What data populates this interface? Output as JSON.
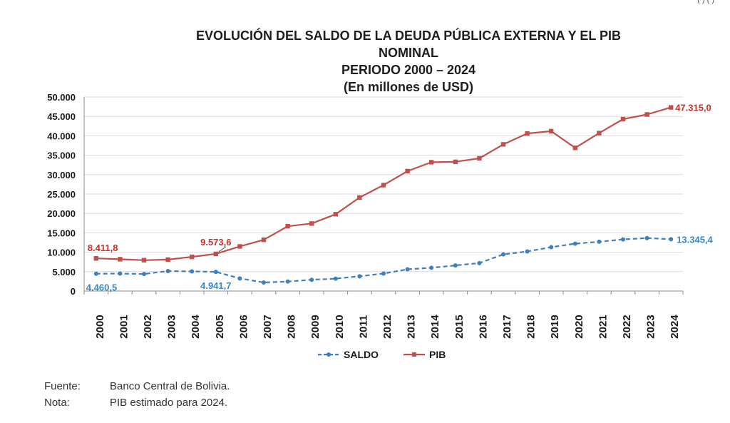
{
  "corner_text": "( ) ( )",
  "colors": {
    "saldo": "#3d7fbf",
    "pib": "#c0504d",
    "saldo_label": "#3a86c8",
    "pib_label": "#c8302c",
    "grid": "#d8d8d8"
  },
  "chart_data": {
    "type": "line",
    "title": "EVOLUCIÓN DEL SALDO DE LA DEUDA PÚBLICA EXTERNA Y EL PIB NOMINAL",
    "subtitle": "PERIODO 2000 – 2024",
    "unit_label": "(En millones de USD)",
    "categories": [
      "2000",
      "2001",
      "2002",
      "2003",
      "2004",
      "2005",
      "2006",
      "2007",
      "2008",
      "2009",
      "2010",
      "2011",
      "2012",
      "2013",
      "2014",
      "2015",
      "2016",
      "2017",
      "2018",
      "2019",
      "2020",
      "2021",
      "2022",
      "2023",
      "2024"
    ],
    "yticks": [
      "0",
      "5.000",
      "10.000",
      "15.000",
      "20.000",
      "25.000",
      "30.000",
      "35.000",
      "40.000",
      "45.000",
      "50.000"
    ],
    "ylim": [
      0,
      50000
    ],
    "grid": "horizontal",
    "legend_position": "bottom",
    "series": [
      {
        "name": "SALDO",
        "style": "dashed-circle",
        "values": [
          4460.5,
          4500,
          4400,
          5150,
          5050,
          4941.7,
          3250,
          2200,
          2450,
          2900,
          3200,
          3800,
          4500,
          5600,
          6000,
          6600,
          7200,
          9450,
          10200,
          11300,
          12200,
          12700,
          13300,
          13650,
          13345.4
        ]
      },
      {
        "name": "PIB",
        "style": "solid-square",
        "values": [
          8411.8,
          8200,
          7950,
          8100,
          8800,
          9573.6,
          11500,
          13200,
          16700,
          17400,
          19800,
          24100,
          27300,
          30900,
          33200,
          33300,
          34200,
          37800,
          40600,
          41200,
          36900,
          40700,
          44300,
          45500,
          47315.0
        ]
      }
    ],
    "annotations": [
      {
        "series": "PIB",
        "year": "2000",
        "text": "8.411,8"
      },
      {
        "series": "PIB",
        "year": "2005",
        "text": "9.573,6"
      },
      {
        "series": "PIB",
        "year": "2024",
        "text": "47.315,0"
      },
      {
        "series": "SALDO",
        "year": "2000",
        "text": "4.460,5"
      },
      {
        "series": "SALDO",
        "year": "2005",
        "text": "4.941,7"
      },
      {
        "series": "SALDO",
        "year": "2024",
        "text": "13.345,4"
      }
    ]
  },
  "notes": [
    {
      "key": "Fuente:",
      "value": "Banco Central de Bolivia."
    },
    {
      "key": "Nota:",
      "value": "PIB estimado para 2024."
    }
  ]
}
